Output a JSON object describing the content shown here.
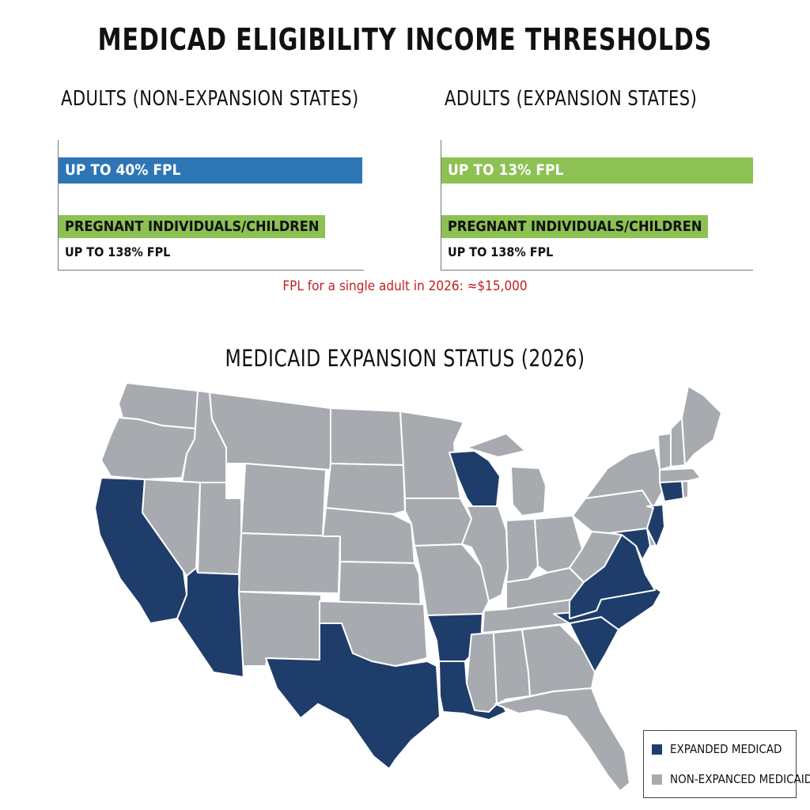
{
  "title": "MEDICAD ELIGIBILITY INCOME THRESHOLDS",
  "left_panel": {
    "title": "ADULTS (NON-EXPANSION STATES)",
    "bar_label": "UP TO 40% FPL",
    "bar_value_percent": 40,
    "bar_color": "#2e75b6",
    "sub_label": "PREGNANT INDIVIDUALS/CHILDREN",
    "sub_value": "UP TO 138% FPL"
  },
  "right_panel": {
    "title": "ADULTS (EXPANSION STATES)",
    "bar_label": "UP TO 13% FPL",
    "bar_value_percent": 13,
    "bar_color": "#8dc153",
    "sub_label": "PREGNANT INDIVIDUALS/CHILDREN",
    "sub_value": "UP TO 138% FPL"
  },
  "fpl_note": "FPL for a single adult in 2026: ≈$15,000",
  "map": {
    "title": "MEDICAID EXPANSION STATUS (2026)",
    "expanded_color": "#1f3d6b",
    "non_expanded_color": "#a7abaf",
    "border_color": "#ffffff",
    "expanded_states": [
      "CA",
      "AZ",
      "TX",
      "AR",
      "LA",
      "WI",
      "VA",
      "NC",
      "SC",
      "NJ",
      "MD",
      "CT"
    ],
    "legend": {
      "expanded": "EXPANDED MEDICAD",
      "non_expanded": "NON-EXPANCED MEDICAID"
    }
  }
}
